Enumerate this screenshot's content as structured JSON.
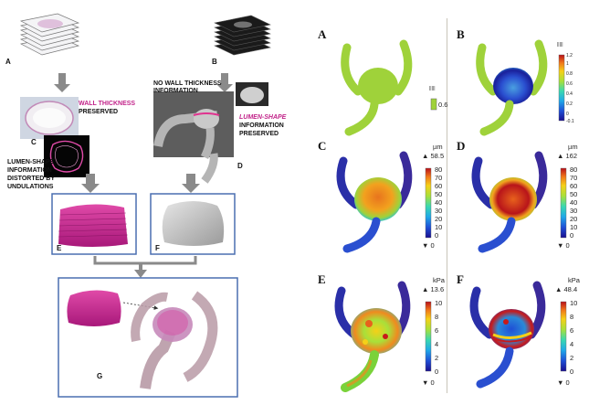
{
  "left": {
    "steps": {
      "a": "A",
      "b": "B",
      "c": "C",
      "d": "D",
      "e": "E",
      "f": "F",
      "g": "G"
    },
    "wall_thickness": "WALL THICKNESS",
    "preserved": "PRESERVED",
    "no_wall_info_1": "NO WALL THICKNESS",
    "no_wall_info_2": "INFORMATION",
    "lumen_shape": "LUMEN-SHAPE",
    "information_preserved_1": "INFORMATION",
    "information_preserved_2": "PRESERVED",
    "lumen_distorted": [
      "LUMEN-SHAPE",
      "INFORMATION",
      "DISTORTED BY",
      "UNDULATIONS"
    ]
  },
  "right": {
    "panels": [
      {
        "letter": "A",
        "unit": "",
        "max_value": "",
        "ticks": [],
        "legend_small_label": "0.6",
        "legend_small_top": "|||||"
      },
      {
        "letter": "B",
        "unit": "",
        "max_value": "",
        "ticks": [
          "1.2",
          "1",
          "0.8",
          "0.6",
          "0.4",
          "0.2",
          "0",
          "-0.1"
        ],
        "legend_small_top": "|||||"
      },
      {
        "letter": "C",
        "unit": "µm",
        "max_value": "58.5",
        "ticks": [
          "80",
          "70",
          "60",
          "50",
          "40",
          "30",
          "20",
          "10",
          "0"
        ],
        "min_value": "0"
      },
      {
        "letter": "D",
        "unit": "µm",
        "max_value": "162",
        "ticks": [
          "80",
          "70",
          "60",
          "50",
          "40",
          "30",
          "20",
          "10",
          "0"
        ],
        "min_value": "0"
      },
      {
        "letter": "E",
        "unit": "kPa",
        "max_value": "13.6",
        "ticks": [
          "10",
          "8",
          "6",
          "4",
          "2",
          "0"
        ],
        "min_value": "0"
      },
      {
        "letter": "F",
        "unit": "kPa",
        "max_value": "48.4",
        "ticks": [
          "10",
          "8",
          "6",
          "4",
          "2",
          "0"
        ],
        "min_value": "0"
      }
    ]
  },
  "colors": {
    "magenta": "#d6338f",
    "magenta_text": "#c2248a",
    "frame_blue": "#4a6fb0",
    "arrow_gray": "#8a8a8a",
    "vessel_green": "#9fd23a"
  }
}
